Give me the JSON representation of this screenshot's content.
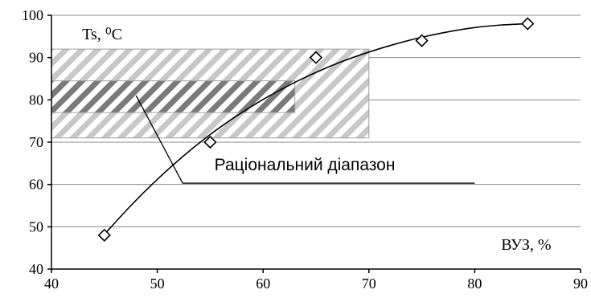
{
  "chart_data": {
    "type": "scatter",
    "xlabel": "ВУЗ, %",
    "ylabel": "Ts, ⁰С",
    "xlim": [
      40,
      90
    ],
    "ylim": [
      40,
      100
    ],
    "x_ticks": [
      40,
      50,
      60,
      70,
      80,
      90
    ],
    "y_ticks": [
      40,
      50,
      60,
      70,
      80,
      90,
      100
    ],
    "grid": "horizontal",
    "series": [
      {
        "marker": "diamond",
        "points": [
          {
            "x": 45,
            "y": 48
          },
          {
            "x": 55,
            "y": 70
          },
          {
            "x": 65,
            "y": 90
          },
          {
            "x": 75,
            "y": 94
          },
          {
            "x": 85,
            "y": 98
          }
        ]
      }
    ],
    "trend_curve": {
      "points": [
        {
          "x": 45,
          "y": 48.2
        },
        {
          "x": 47.5,
          "y": 55.0
        },
        {
          "x": 50,
          "y": 61.2
        },
        {
          "x": 52.5,
          "y": 66.8
        },
        {
          "x": 55,
          "y": 71.8
        },
        {
          "x": 57.5,
          "y": 76.2
        },
        {
          "x": 60,
          "y": 80.1
        },
        {
          "x": 62.5,
          "y": 83.5
        },
        {
          "x": 65,
          "y": 86.5
        },
        {
          "x": 67.5,
          "y": 89.1
        },
        {
          "x": 70,
          "y": 91.3
        },
        {
          "x": 72.5,
          "y": 93.2
        },
        {
          "x": 75,
          "y": 94.8
        },
        {
          "x": 77.5,
          "y": 96.1
        },
        {
          "x": 80,
          "y": 97.1
        },
        {
          "x": 82.5,
          "y": 97.7
        },
        {
          "x": 85,
          "y": 98.0
        }
      ]
    },
    "regions": [
      {
        "x_range": [
          40,
          70
        ],
        "y_range": [
          71,
          92
        ],
        "fill": "hatched-light"
      },
      {
        "x_range": [
          40,
          63
        ],
        "y_range": [
          77,
          84.5
        ],
        "fill": "hatched-dark"
      }
    ],
    "annotation": {
      "text": "Раціональний діапазон",
      "pointer": [
        {
          "x": 48,
          "y": 81
        },
        {
          "x": 52.4,
          "y": 60.3
        },
        {
          "x": 80,
          "y": 60.3
        }
      ]
    },
    "colors": {
      "marker_stroke": "#000000",
      "marker_fill": "#ffffff",
      "curve": "#000000",
      "grid": "#8c8c8c",
      "hatch_light": "#c8c8c8",
      "hatch_dark": "#7a7a7a",
      "region_border": "#a0a0a0"
    }
  }
}
